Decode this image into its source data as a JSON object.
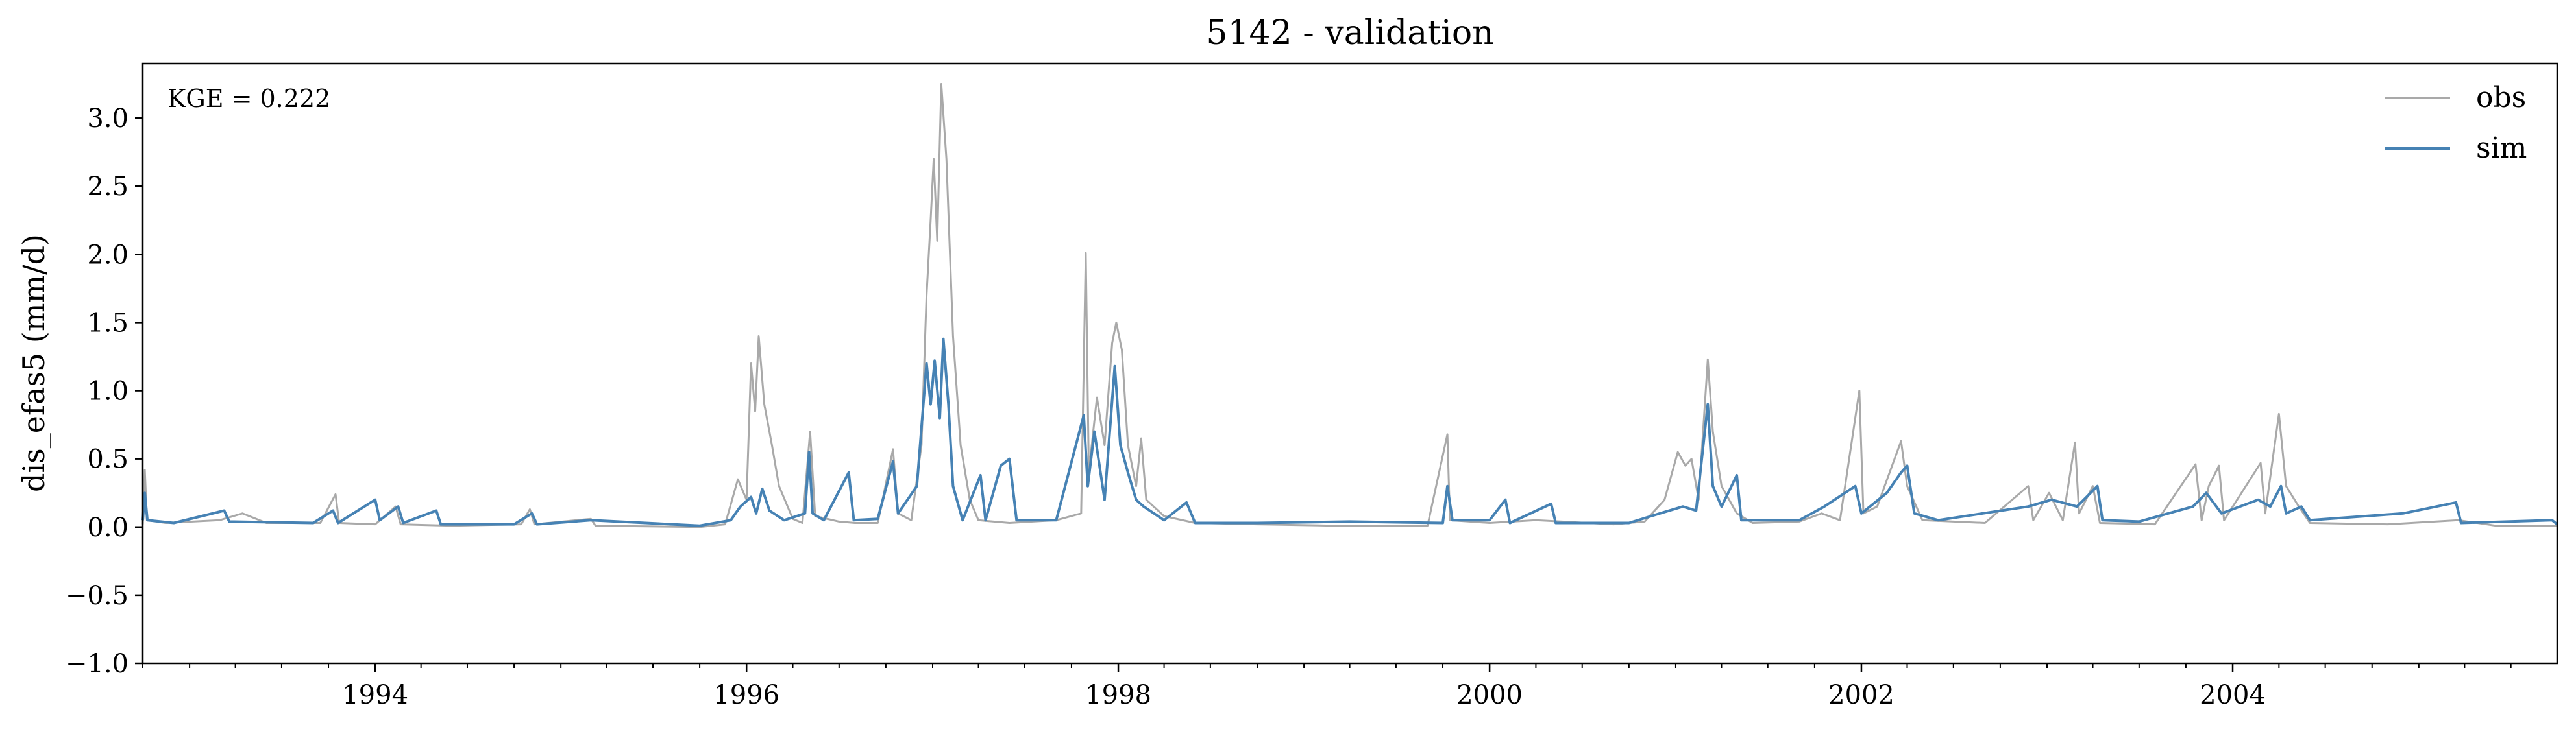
{
  "chart_data": {
    "type": "line",
    "title": "5142 - validation",
    "ylabel": "dis_efas5 (mm/d)",
    "xlabel": "",
    "annotation": "KGE = 0.222",
    "xlim": [
      "1992-10-01",
      "2005-09-30"
    ],
    "ylim": [
      -1.0,
      3.4
    ],
    "yticks": [
      -1.0,
      -0.5,
      0.0,
      0.5,
      1.0,
      1.5,
      2.0,
      2.5,
      3.0
    ],
    "ytick_labels": [
      "−1.0",
      "−0.5",
      "0.0",
      "0.5",
      "1.0",
      "1.5",
      "2.0",
      "2.5",
      "3.0"
    ],
    "xticks": [
      "1994-01-01",
      "1996-01-01",
      "1998-01-01",
      "2000-01-01",
      "2002-01-01",
      "2004-01-01"
    ],
    "xtick_labels": [
      "1994",
      "1996",
      "1998",
      "2000",
      "2002",
      "2004"
    ],
    "grid": false,
    "legend_position": "top-right",
    "series": [
      {
        "name": "obs",
        "color": "#a9a9a9",
        "points": [
          [
            "1992-10-01",
            0.02
          ],
          [
            "1992-10-05",
            0.42
          ],
          [
            "1992-10-09",
            0.05
          ],
          [
            "1992-11-15",
            0.03
          ],
          [
            "1993-03-01",
            0.05
          ],
          [
            "1993-04-15",
            0.1
          ],
          [
            "1993-06-01",
            0.03
          ],
          [
            "1993-09-15",
            0.03
          ],
          [
            "1993-10-15",
            0.24
          ],
          [
            "1993-10-22",
            0.03
          ],
          [
            "1994-01-01",
            0.02
          ],
          [
            "1994-02-10",
            0.15
          ],
          [
            "1994-02-20",
            0.02
          ],
          [
            "1994-06-01",
            0.01
          ],
          [
            "1994-10-15",
            0.02
          ],
          [
            "1994-11-01",
            0.13
          ],
          [
            "1994-11-10",
            0.02
          ],
          [
            "1995-03-01",
            0.06
          ],
          [
            "1995-03-10",
            0.01
          ],
          [
            "1995-10-01",
            0.0
          ],
          [
            "1995-11-20",
            0.02
          ],
          [
            "1995-12-15",
            0.35
          ],
          [
            "1996-01-01",
            0.2
          ],
          [
            "1996-01-10",
            1.2
          ],
          [
            "1996-01-18",
            0.85
          ],
          [
            "1996-01-25",
            1.4
          ],
          [
            "1996-02-05",
            0.9
          ],
          [
            "1996-02-20",
            0.6
          ],
          [
            "1996-03-05",
            0.3
          ],
          [
            "1996-04-01",
            0.06
          ],
          [
            "1996-04-20",
            0.03
          ],
          [
            "1996-05-05",
            0.7
          ],
          [
            "1996-05-15",
            0.08
          ],
          [
            "1996-07-01",
            0.04
          ],
          [
            "1996-08-01",
            0.03
          ],
          [
            "1996-09-15",
            0.03
          ],
          [
            "1996-10-15",
            0.57
          ],
          [
            "1996-10-25",
            0.1
          ],
          [
            "1996-11-20",
            0.05
          ],
          [
            "1996-12-10",
            0.6
          ],
          [
            "1996-12-20",
            1.7
          ],
          [
            "1996-12-28",
            2.25
          ],
          [
            "1997-01-03",
            2.7
          ],
          [
            "1997-01-10",
            2.1
          ],
          [
            "1997-01-18",
            3.25
          ],
          [
            "1997-01-28",
            2.7
          ],
          [
            "1997-02-10",
            1.4
          ],
          [
            "1997-02-25",
            0.6
          ],
          [
            "1997-03-15",
            0.2
          ],
          [
            "1997-04-01",
            0.05
          ],
          [
            "1997-06-01",
            0.03
          ],
          [
            "1997-09-01",
            0.05
          ],
          [
            "1997-10-20",
            0.1
          ],
          [
            "1997-10-29",
            2.01
          ],
          [
            "1997-11-04",
            0.4
          ],
          [
            "1997-11-20",
            0.95
          ],
          [
            "1997-12-05",
            0.6
          ],
          [
            "1997-12-20",
            1.35
          ],
          [
            "1997-12-28",
            1.5
          ],
          [
            "1998-01-08",
            1.3
          ],
          [
            "1998-01-20",
            0.6
          ],
          [
            "1998-02-05",
            0.3
          ],
          [
            "1998-02-15",
            0.65
          ],
          [
            "1998-02-25",
            0.2
          ],
          [
            "1998-04-01",
            0.08
          ],
          [
            "1998-06-01",
            0.03
          ],
          [
            "1998-10-01",
            0.02
          ],
          [
            "1999-03-01",
            0.01
          ],
          [
            "1999-09-01",
            0.01
          ],
          [
            "1999-10-10",
            0.68
          ],
          [
            "1999-10-15",
            0.05
          ],
          [
            "2000-01-01",
            0.03
          ],
          [
            "2000-04-01",
            0.05
          ],
          [
            "2000-09-01",
            0.02
          ],
          [
            "2000-11-01",
            0.04
          ],
          [
            "2000-12-10",
            0.2
          ],
          [
            "2001-01-05",
            0.55
          ],
          [
            "2001-01-20",
            0.45
          ],
          [
            "2001-02-01",
            0.5
          ],
          [
            "2001-02-15",
            0.2
          ],
          [
            "2001-03-05",
            1.23
          ],
          [
            "2001-03-15",
            0.7
          ],
          [
            "2001-04-01",
            0.3
          ],
          [
            "2001-05-01",
            0.1
          ],
          [
            "2001-06-01",
            0.03
          ],
          [
            "2001-09-01",
            0.04
          ],
          [
            "2001-10-15",
            0.1
          ],
          [
            "2001-11-20",
            0.05
          ],
          [
            "2001-12-28",
            1.0
          ],
          [
            "2002-01-05",
            0.1
          ],
          [
            "2002-02-01",
            0.15
          ],
          [
            "2002-03-20",
            0.63
          ],
          [
            "2002-04-01",
            0.3
          ],
          [
            "2002-05-01",
            0.05
          ],
          [
            "2002-09-01",
            0.03
          ],
          [
            "2002-11-25",
            0.3
          ],
          [
            "2002-12-05",
            0.05
          ],
          [
            "2003-01-05",
            0.25
          ],
          [
            "2003-02-01",
            0.05
          ],
          [
            "2003-02-25",
            0.62
          ],
          [
            "2003-03-05",
            0.1
          ],
          [
            "2003-04-01",
            0.3
          ],
          [
            "2003-04-15",
            0.03
          ],
          [
            "2003-08-01",
            0.02
          ],
          [
            "2003-10-20",
            0.46
          ],
          [
            "2003-11-01",
            0.05
          ],
          [
            "2003-11-15",
            0.3
          ],
          [
            "2003-12-05",
            0.45
          ],
          [
            "2003-12-15",
            0.05
          ],
          [
            "2004-02-25",
            0.47
          ],
          [
            "2004-03-05",
            0.1
          ],
          [
            "2004-04-01",
            0.83
          ],
          [
            "2004-04-15",
            0.3
          ],
          [
            "2004-05-10",
            0.15
          ],
          [
            "2004-06-01",
            0.03
          ],
          [
            "2004-11-01",
            0.02
          ],
          [
            "2005-03-20",
            0.05
          ],
          [
            "2005-06-01",
            0.01
          ],
          [
            "2005-09-30",
            0.01
          ]
        ]
      },
      {
        "name": "sim",
        "color": "#4682b4",
        "points": [
          [
            "1992-10-01",
            0.05
          ],
          [
            "1992-10-05",
            0.25
          ],
          [
            "1992-10-10",
            0.05
          ],
          [
            "1992-12-01",
            0.03
          ],
          [
            "1993-03-10",
            0.12
          ],
          [
            "1993-03-20",
            0.04
          ],
          [
            "1993-09-01",
            0.03
          ],
          [
            "1993-10-10",
            0.12
          ],
          [
            "1993-10-20",
            0.03
          ],
          [
            "1994-01-01",
            0.2
          ],
          [
            "1994-01-10",
            0.05
          ],
          [
            "1994-02-15",
            0.15
          ],
          [
            "1994-02-25",
            0.03
          ],
          [
            "1994-05-01",
            0.12
          ],
          [
            "1994-05-10",
            0.02
          ],
          [
            "1994-10-01",
            0.02
          ],
          [
            "1994-11-05",
            0.1
          ],
          [
            "1994-11-15",
            0.02
          ],
          [
            "1995-03-01",
            0.05
          ],
          [
            "1995-10-01",
            0.01
          ],
          [
            "1995-12-01",
            0.05
          ],
          [
            "1995-12-20",
            0.15
          ],
          [
            "1996-01-10",
            0.22
          ],
          [
            "1996-01-20",
            0.1
          ],
          [
            "1996-02-01",
            0.28
          ],
          [
            "1996-02-15",
            0.12
          ],
          [
            "1996-03-15",
            0.05
          ],
          [
            "1996-04-25",
            0.1
          ],
          [
            "1996-05-03",
            0.55
          ],
          [
            "1996-05-10",
            0.1
          ],
          [
            "1996-06-01",
            0.05
          ],
          [
            "1996-07-20",
            0.4
          ],
          [
            "1996-07-30",
            0.05
          ],
          [
            "1996-09-15",
            0.06
          ],
          [
            "1996-10-15",
            0.48
          ],
          [
            "1996-10-25",
            0.1
          ],
          [
            "1996-12-01",
            0.3
          ],
          [
            "1996-12-20",
            1.2
          ],
          [
            "1996-12-28",
            0.9
          ],
          [
            "1997-01-05",
            1.22
          ],
          [
            "1997-01-15",
            0.8
          ],
          [
            "1997-01-22",
            1.38
          ],
          [
            "1997-02-01",
            0.9
          ],
          [
            "1997-02-10",
            0.3
          ],
          [
            "1997-03-01",
            0.05
          ],
          [
            "1997-04-05",
            0.38
          ],
          [
            "1997-04-15",
            0.05
          ],
          [
            "1997-05-15",
            0.45
          ],
          [
            "1997-06-01",
            0.5
          ],
          [
            "1997-06-15",
            0.05
          ],
          [
            "1997-09-01",
            0.05
          ],
          [
            "1997-10-25",
            0.82
          ],
          [
            "1997-11-02",
            0.3
          ],
          [
            "1997-11-15",
            0.7
          ],
          [
            "1997-12-05",
            0.2
          ],
          [
            "1997-12-25",
            1.18
          ],
          [
            "1998-01-05",
            0.6
          ],
          [
            "1998-01-20",
            0.4
          ],
          [
            "1998-02-05",
            0.2
          ],
          [
            "1998-02-20",
            0.15
          ],
          [
            "1998-04-01",
            0.05
          ],
          [
            "1998-05-15",
            0.18
          ],
          [
            "1998-06-01",
            0.03
          ],
          [
            "1998-10-01",
            0.03
          ],
          [
            "1999-04-01",
            0.04
          ],
          [
            "1999-10-01",
            0.03
          ],
          [
            "1999-10-10",
            0.3
          ],
          [
            "1999-10-20",
            0.05
          ],
          [
            "2000-01-01",
            0.05
          ],
          [
            "2000-02-01",
            0.2
          ],
          [
            "2000-02-10",
            0.03
          ],
          [
            "2000-05-01",
            0.17
          ],
          [
            "2000-05-10",
            0.03
          ],
          [
            "2000-10-01",
            0.03
          ],
          [
            "2000-12-01",
            0.1
          ],
          [
            "2001-01-15",
            0.15
          ],
          [
            "2001-02-10",
            0.12
          ],
          [
            "2001-03-05",
            0.9
          ],
          [
            "2001-03-15",
            0.3
          ],
          [
            "2001-04-01",
            0.15
          ],
          [
            "2001-05-01",
            0.38
          ],
          [
            "2001-05-10",
            0.05
          ],
          [
            "2001-09-01",
            0.05
          ],
          [
            "2001-10-20",
            0.15
          ],
          [
            "2001-12-20",
            0.3
          ],
          [
            "2002-01-01",
            0.1
          ],
          [
            "2002-02-20",
            0.25
          ],
          [
            "2002-03-20",
            0.4
          ],
          [
            "2002-04-01",
            0.45
          ],
          [
            "2002-04-15",
            0.1
          ],
          [
            "2002-06-01",
            0.05
          ],
          [
            "2002-11-25",
            0.15
          ],
          [
            "2003-01-10",
            0.2
          ],
          [
            "2003-03-01",
            0.15
          ],
          [
            "2003-04-10",
            0.3
          ],
          [
            "2003-04-20",
            0.05
          ],
          [
            "2003-07-01",
            0.04
          ],
          [
            "2003-10-15",
            0.15
          ],
          [
            "2003-11-10",
            0.25
          ],
          [
            "2003-12-10",
            0.1
          ],
          [
            "2004-02-20",
            0.2
          ],
          [
            "2004-03-15",
            0.15
          ],
          [
            "2004-04-05",
            0.3
          ],
          [
            "2004-04-15",
            0.1
          ],
          [
            "2004-05-15",
            0.15
          ],
          [
            "2004-06-01",
            0.05
          ],
          [
            "2004-12-01",
            0.1
          ],
          [
            "2005-03-15",
            0.18
          ],
          [
            "2005-03-25",
            0.03
          ],
          [
            "2005-09-20",
            0.05
          ],
          [
            "2005-09-30",
            0.02
          ]
        ]
      }
    ]
  }
}
